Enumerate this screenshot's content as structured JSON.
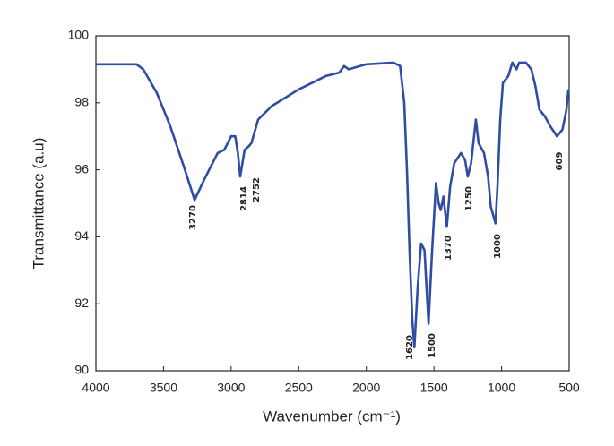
{
  "chart_data": {
    "type": "line",
    "xlabel": "Wavenumber (cm⁻¹)",
    "ylabel": "Transmittance (a.u)",
    "xlim": [
      4000,
      500
    ],
    "ylim": [
      90,
      100
    ],
    "xticks": [
      4000,
      3500,
      3000,
      2500,
      2000,
      1500,
      1000,
      500
    ],
    "yticks": [
      90,
      92,
      94,
      96,
      98,
      100
    ],
    "series": [
      {
        "color": "#2f4ea3",
        "x": [
          4000,
          3700,
          3650,
          3550,
          3450,
          3350,
          3270,
          3200,
          3100,
          3050,
          3000,
          2970,
          2950,
          2933,
          2900,
          2870,
          2850,
          2800,
          2700,
          2500,
          2300,
          2200,
          2165,
          2130,
          2000,
          1800,
          1750,
          1720,
          1700,
          1680,
          1660,
          1645,
          1620,
          1595,
          1570,
          1555,
          1540,
          1515,
          1485,
          1465,
          1450,
          1430,
          1405,
          1380,
          1350,
          1300,
          1270,
          1250,
          1225,
          1190,
          1170,
          1130,
          1100,
          1080,
          1045,
          1030,
          1010,
          990,
          950,
          920,
          890,
          870,
          820,
          780,
          750,
          720,
          680,
          640,
          590,
          550,
          520,
          505
        ],
        "values": [
          99.15,
          99.15,
          99.0,
          98.3,
          97.3,
          96.1,
          95.1,
          95.7,
          96.5,
          96.6,
          97.0,
          97.0,
          96.5,
          95.8,
          96.6,
          96.7,
          96.8,
          97.5,
          97.9,
          98.4,
          98.8,
          98.9,
          99.1,
          99.0,
          99.15,
          99.2,
          99.1,
          98.0,
          96.0,
          93.5,
          91.5,
          90.7,
          92.5,
          93.8,
          93.6,
          92.5,
          91.4,
          93.5,
          95.6,
          95.0,
          94.8,
          95.2,
          94.3,
          95.5,
          96.2,
          96.5,
          96.3,
          95.8,
          96.2,
          97.5,
          96.8,
          96.5,
          95.8,
          94.9,
          94.4,
          95.5,
          97.5,
          98.6,
          98.8,
          99.2,
          99.0,
          99.2,
          99.2,
          99.0,
          98.5,
          97.8,
          97.6,
          97.3,
          97.0,
          97.2,
          97.8,
          98.4
        ]
      }
    ],
    "annotations": [
      "3270",
      "2814",
      "2752",
      "1620",
      "1500",
      "1370",
      "1250",
      "1000",
      "609"
    ]
  }
}
